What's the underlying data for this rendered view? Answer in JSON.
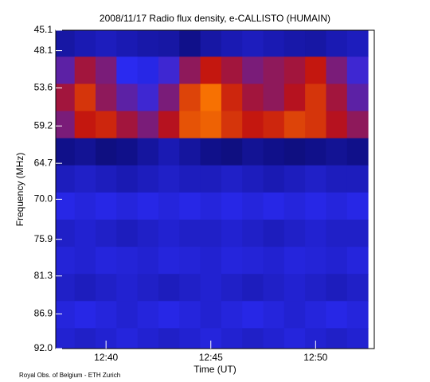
{
  "chart_data": {
    "type": "heatmap",
    "title": "2008/11/17  Radio flux density, e-CALLISTO (HUMAIN)",
    "xlabel": "Time (UT)",
    "ylabel": "Frequency (MHz)",
    "credit": "Royal Obs. of Belgium - ETH Zurich",
    "x": [
      758,
      759,
      760,
      761,
      762,
      763,
      764,
      765,
      766,
      767,
      768,
      769,
      770,
      771,
      772
    ],
    "y": [
      47,
      51,
      55,
      59,
      63,
      67,
      71,
      75,
      79,
      83,
      87,
      91
    ],
    "z": [
      [
        35,
        38,
        40,
        38,
        36,
        35,
        30,
        35,
        38,
        40,
        38,
        36,
        35,
        38,
        40
      ],
      [
        55,
        62,
        58,
        50,
        48,
        52,
        60,
        66,
        62,
        58,
        60,
        62,
        66,
        58,
        52
      ],
      [
        62,
        70,
        60,
        55,
        52,
        58,
        72,
        78,
        68,
        62,
        60,
        64,
        70,
        62,
        55
      ],
      [
        58,
        66,
        68,
        62,
        58,
        64,
        74,
        76,
        70,
        66,
        68,
        72,
        70,
        64,
        60
      ],
      [
        30,
        32,
        28,
        30,
        34,
        38,
        34,
        30,
        28,
        32,
        30,
        28,
        30,
        32,
        30
      ],
      [
        40,
        42,
        40,
        38,
        40,
        42,
        40,
        40,
        42,
        40,
        38,
        40,
        42,
        40,
        40
      ],
      [
        48,
        46,
        48,
        46,
        48,
        46,
        48,
        46,
        48,
        46,
        48,
        46,
        48,
        46,
        48
      ],
      [
        42,
        44,
        42,
        40,
        42,
        44,
        42,
        42,
        44,
        42,
        40,
        42,
        44,
        42,
        42
      ],
      [
        45,
        44,
        46,
        45,
        44,
        46,
        45,
        44,
        46,
        45,
        44,
        46,
        45,
        44,
        46
      ],
      [
        42,
        40,
        42,
        44,
        42,
        40,
        42,
        44,
        42,
        40,
        42,
        44,
        42,
        40,
        42
      ],
      [
        46,
        48,
        46,
        44,
        46,
        48,
        46,
        44,
        46,
        48,
        46,
        44,
        46,
        48,
        46
      ],
      [
        44,
        42,
        44,
        46,
        44,
        42,
        44,
        46,
        44,
        42,
        44,
        46,
        44,
        42,
        44
      ]
    ],
    "colorscale": [
      [
        0,
        "#000000"
      ],
      [
        30,
        "#10108a"
      ],
      [
        50,
        "#2a2af0"
      ],
      [
        65,
        "#c01010"
      ],
      [
        80,
        "#ff8000"
      ],
      [
        100,
        "#ffff60"
      ]
    ],
    "xlim": [
      757.6,
      772.8
    ],
    "xticks": [
      {
        "value": 760,
        "label": "12:40"
      },
      {
        "value": 765,
        "label": "12:45"
      },
      {
        "value": 770,
        "label": "12:50"
      }
    ],
    "ylim": [
      45.1,
      92.0
    ],
    "y_inverted": true,
    "yticks": [
      45.1,
      48.1,
      53.6,
      59.2,
      64.7,
      {
        "value": 70,
        "label": "70.0"
      },
      75.9,
      81.3,
      86.9,
      {
        "value": 92,
        "label": "92.0"
      }
    ]
  }
}
